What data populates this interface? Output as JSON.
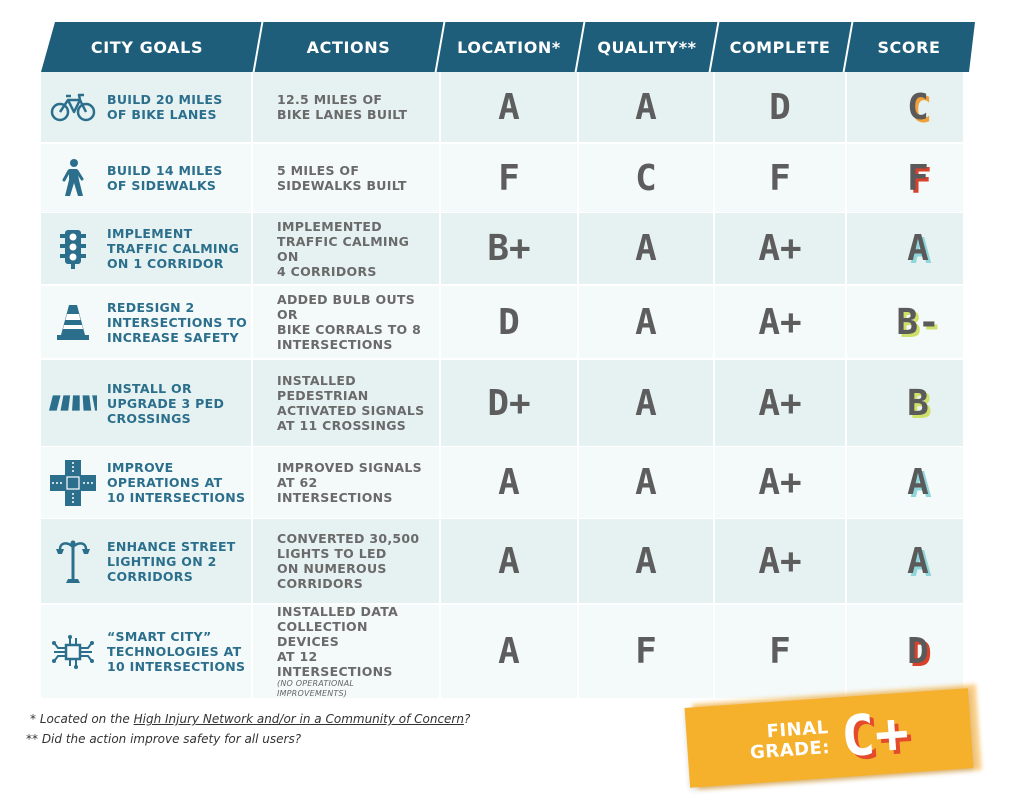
{
  "header": {
    "city_goals": "CITY GOALS",
    "actions": "ACTIONS",
    "location": "LOCATION*",
    "quality": "QUALITY**",
    "complete": "COMPLETE",
    "score": "SCORE"
  },
  "rows": [
    {
      "icon": "bicycle-icon",
      "goal_lines": [
        "BUILD 20 MILES",
        "OF BIKE LANES"
      ],
      "action_lines": [
        "12.5 MILES OF",
        "BIKE LANES BUILT"
      ],
      "location": "A",
      "quality": "A",
      "complete": "D",
      "score": "C",
      "score_shadow": "#f0a13a"
    },
    {
      "icon": "pedestrian-icon",
      "goal_lines": [
        "BUILD 14 MILES",
        "OF SIDEWALKS"
      ],
      "action_lines": [
        "5 MILES OF",
        "SIDEWALKS BUILT"
      ],
      "location": "F",
      "quality": "C",
      "complete": "F",
      "score": "F",
      "score_shadow": "#d9412b"
    },
    {
      "icon": "traffic-light-icon",
      "goal_lines": [
        "IMPLEMENT",
        "TRAFFIC CALMING",
        "ON 1 CORRIDOR"
      ],
      "action_lines": [
        "IMPLEMENTED",
        "TRAFFIC CALMING ON",
        "4 CORRIDORS"
      ],
      "location": "B+",
      "quality": "A",
      "complete": "A+",
      "score": "A",
      "score_shadow": "#8fd6db"
    },
    {
      "icon": "traffic-cone-icon",
      "goal_lines": [
        "REDESIGN 2",
        "INTERSECTIONS TO",
        "INCREASE SAFETY"
      ],
      "action_lines": [
        "ADDED BULB OUTS OR",
        "BIKE CORRALS TO 8",
        "INTERSECTIONS"
      ],
      "location": "D",
      "quality": "A",
      "complete": "A+",
      "score": "B-",
      "score_shadow": "#cfe06a"
    },
    {
      "icon": "crosswalk-icon",
      "goal_lines": [
        "INSTALL OR",
        "UPGRADE 3 PED",
        "CROSSINGS"
      ],
      "action_lines": [
        "INSTALLED",
        "PEDESTRIAN",
        "ACTIVATED SIGNALS",
        "AT 11 CROSSINGS"
      ],
      "location": "D+",
      "quality": "A",
      "complete": "A+",
      "score": "B",
      "score_shadow": "#cfe06a"
    },
    {
      "icon": "intersection-icon",
      "goal_lines": [
        "IMPROVE",
        "OPERATIONS AT",
        "10 INTERSECTIONS"
      ],
      "action_lines": [
        "IMPROVED SIGNALS",
        "AT 62 INTERSECTIONS"
      ],
      "location": "A",
      "quality": "A",
      "complete": "A+",
      "score": "A",
      "score_shadow": "#8fd6db"
    },
    {
      "icon": "street-lamp-icon",
      "goal_lines": [
        "ENHANCE STREET",
        "LIGHTING ON 2",
        "CORRIDORS"
      ],
      "action_lines": [
        "CONVERTED 30,500",
        "LIGHTS TO LED",
        "ON NUMEROUS",
        "CORRIDORS"
      ],
      "location": "A",
      "quality": "A",
      "complete": "A+",
      "score": "A",
      "score_shadow": "#8fd6db"
    },
    {
      "icon": "circuit-icon",
      "goal_lines": [
        "“SMART CITY”",
        "TECHNOLOGIES AT",
        "10 INTERSECTIONS"
      ],
      "action_lines": [
        "INSTALLED DATA",
        "COLLECTION DEVICES",
        "AT 12 INTERSECTIONS"
      ],
      "action_note_lines": [
        "(NO OPERATIONAL",
        "IMPROVEMENTS)"
      ],
      "location": "A",
      "quality": "F",
      "complete": "F",
      "score": "D",
      "score_shadow": "#d9412b"
    }
  ],
  "footnotes": {
    "f1_prefix": "* Located on the ",
    "f1_link": "High Injury Network and/or in a Community of Concern",
    "f1_suffix": "?",
    "f2": "** Did the action improve safety for all users?"
  },
  "final": {
    "label_line1": "FINAL",
    "label_line2": "GRADE:",
    "grade": "C+"
  },
  "colors": {
    "header_bg": "#1f5e7b",
    "row_tint": "#e6f2f1",
    "row_plain": "#f4f9f9",
    "goal_text": "#2b6f8d",
    "final_bg": "#f5b02c"
  }
}
